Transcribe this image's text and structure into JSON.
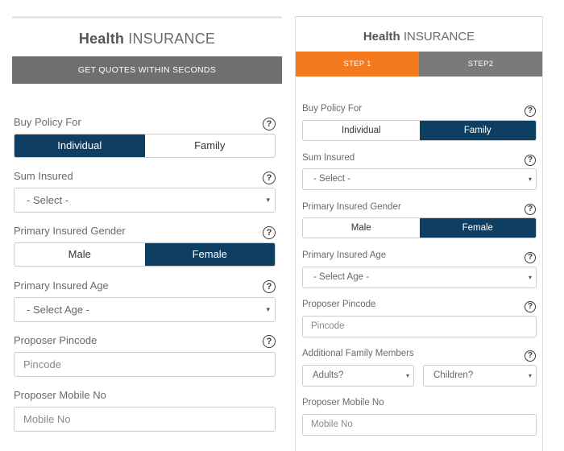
{
  "left": {
    "title_bold": "Health",
    "title_rest": " INSURANCE",
    "banner": "GET QUOTES WITHIN SECONDS",
    "buy_policy": {
      "label": "Buy Policy For",
      "options": [
        "Individual",
        "Family"
      ],
      "selected": "Individual"
    },
    "sum_insured": {
      "label": "Sum Insured",
      "value": "- Select -"
    },
    "gender": {
      "label": "Primary Insured Gender",
      "options": [
        "Male",
        "Female"
      ],
      "selected": "Female"
    },
    "age": {
      "label": "Primary Insured Age",
      "value": "- Select Age -"
    },
    "pincode": {
      "label": "Proposer Pincode",
      "placeholder": "Pincode"
    },
    "mobile": {
      "label": "Proposer Mobile No",
      "placeholder": "Mobile No"
    }
  },
  "right": {
    "title_bold": "Health",
    "title_rest": " INSURANCE",
    "steps": [
      "STEP 1",
      "STEP2"
    ],
    "active_step": "STEP 1",
    "buy_policy": {
      "label": "Buy Policy For",
      "options": [
        "Individual",
        "Family"
      ],
      "selected": "Family"
    },
    "sum_insured": {
      "label": "Sum Insured",
      "value": "- Select -"
    },
    "gender": {
      "label": "Primary Insured Gender",
      "options": [
        "Male",
        "Female"
      ],
      "selected": "Female"
    },
    "age": {
      "label": "Primary Insured Age",
      "value": "- Select Age -"
    },
    "pincode": {
      "label": "Proposer Pincode",
      "placeholder": "Pincode"
    },
    "family": {
      "label": "Additional Family Members",
      "adults": "Adults?",
      "children": "Children?"
    },
    "mobile": {
      "label": "Proposer Mobile No",
      "placeholder": "Mobile No"
    }
  },
  "help_glyph": "?",
  "dropdown_glyph": "▾",
  "colors": {
    "selected": "#0e3f62",
    "step_active": "#f47a20",
    "step_inactive": "#7a7a7a",
    "banner": "#6f6f6f"
  }
}
